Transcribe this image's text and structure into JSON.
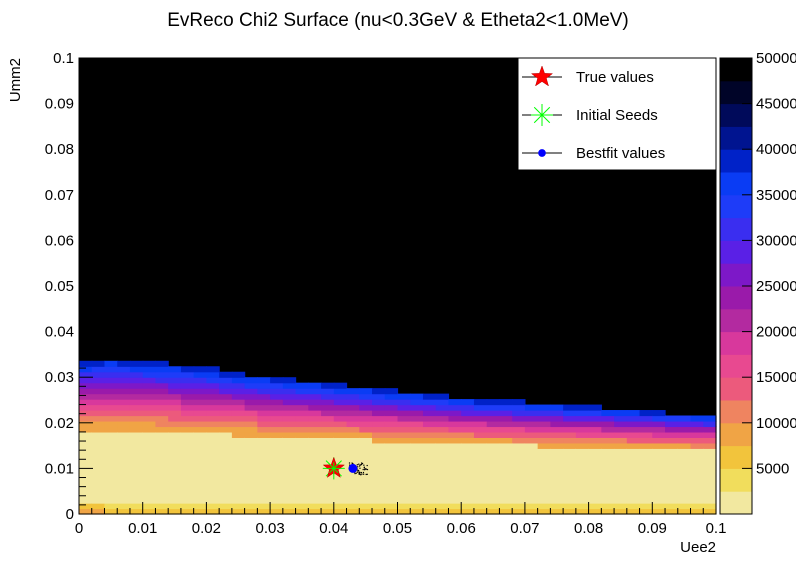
{
  "chart_data": {
    "type": "heatmap",
    "title": "EvReco Chi2 Surface (nu<0.3GeV & Etheta2<1.0MeV)",
    "xlabel": "Uee2",
    "ylabel": "Umm2",
    "xlim": [
      0,
      0.1
    ],
    "ylim": [
      0,
      0.1
    ],
    "x_ticks": [
      "0",
      "0.01",
      "0.02",
      "0.03",
      "0.04",
      "0.05",
      "0.06",
      "0.07",
      "0.08",
      "0.09",
      "0.1"
    ],
    "y_ticks": [
      "0",
      "0.01",
      "0.02",
      "0.03",
      "0.04",
      "0.05",
      "0.06",
      "0.07",
      "0.08",
      "0.09",
      "0.1"
    ],
    "z_range": [
      0,
      5000
    ],
    "z_ticks": [
      "5000",
      "10000",
      "15000",
      "20000",
      "25000",
      "30000",
      "35000",
      "40000",
      "45000",
      "50000"
    ],
    "z_tick_values": [
      5000,
      10000,
      15000,
      20000,
      25000,
      30000,
      35000,
      40000,
      45000,
      50000
    ],
    "z_max_display": 50000,
    "grid": false,
    "legend_position": "top-right",
    "legend": [
      {
        "label": "True values",
        "marker": "star",
        "color": "#ff0000"
      },
      {
        "label": "Initial Seeds",
        "marker": "asterisk",
        "color": "#00ff00"
      },
      {
        "label": "Bestfit values",
        "marker": "circle",
        "color": "#0000ff"
      }
    ],
    "palette": [
      "#f2e8a0",
      "#f1dd5c",
      "#f2c43c",
      "#f0a445",
      "#ef8460",
      "#ec5a7c",
      "#e84990",
      "#d8389c",
      "#b32aa0",
      "#9a1aaa",
      "#7d18c8",
      "#5a20e6",
      "#3a2ef0",
      "#1e3cf8",
      "#0a3cf4",
      "#0022c8",
      "#001490",
      "#000a5a",
      "#000428",
      "#000000"
    ],
    "surface_profile": {
      "x": [
        0,
        0.005,
        0.01,
        0.02,
        0.03,
        0.04,
        0.05,
        0.06,
        0.07,
        0.08,
        0.09,
        0.1
      ],
      "boundary_y": [
        0.0335,
        0.034,
        0.0335,
        0.032,
        0.03,
        0.0285,
        0.027,
        0.0255,
        0.0245,
        0.0235,
        0.0225,
        0.0215
      ],
      "min_y": 0.01
    },
    "true_values": {
      "x": 0.04,
      "y": 0.01
    },
    "initial_seeds": {
      "x": 0.04,
      "y": 0.01
    },
    "bestfit_values": {
      "x": 0.043,
      "y": 0.01
    }
  }
}
